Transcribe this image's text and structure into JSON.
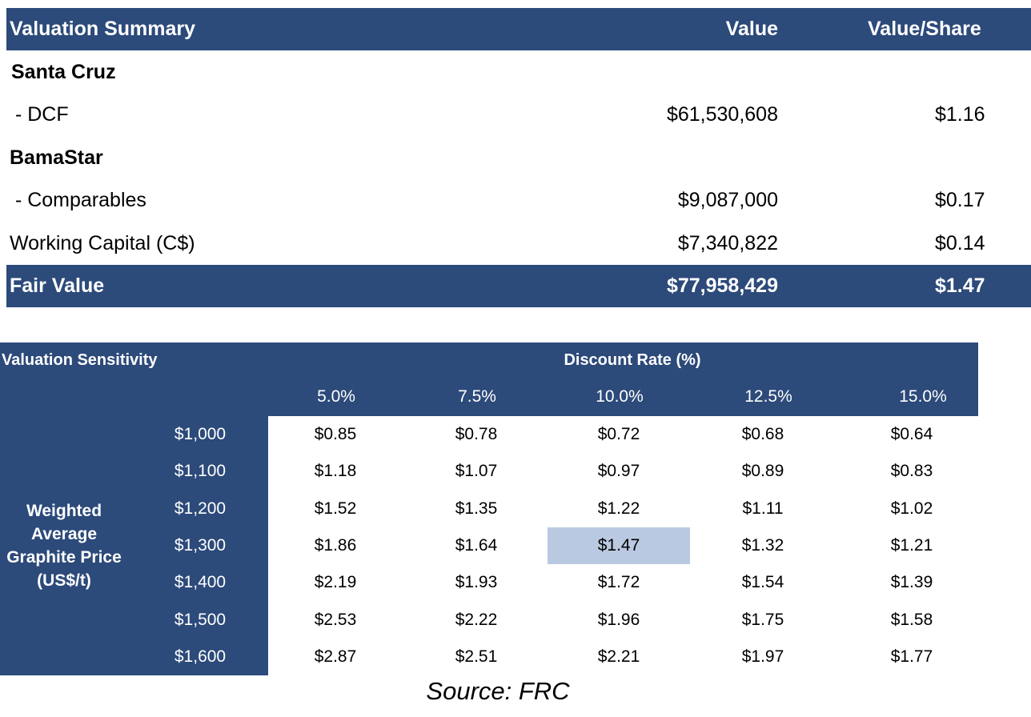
{
  "summary": {
    "header": {
      "title": "Valuation Summary",
      "value": "Value",
      "value_per_share": "Value/Share"
    },
    "rows": [
      {
        "label": "Santa Cruz",
        "value": "",
        "value_per_share": ""
      },
      {
        "label": " - DCF",
        "value": "$61,530,608",
        "value_per_share": "$1.16"
      },
      {
        "label": "BamaStar",
        "value": "",
        "value_per_share": ""
      },
      {
        "label": " - Comparables",
        "value": "$9,087,000",
        "value_per_share": "$0.17"
      },
      {
        "label": "Working Capital (C$)",
        "value": "$7,340,822",
        "value_per_share": "$0.14"
      }
    ],
    "total": {
      "label": "Fair Value",
      "value": "$77,958,429",
      "value_per_share": "$1.47"
    }
  },
  "sensitivity": {
    "title": "Valuation Sensitivity",
    "column_axis_label": "Discount Rate (%)",
    "row_axis_label": "Weighted Average Graphite Price (US$/t)",
    "row_axis_lines": [
      "Weighted",
      "Average",
      "Graphite Price",
      "(US$/t)"
    ],
    "discount_rates": [
      "5.0%",
      "7.5%",
      "10.0%",
      "12.5%",
      "15.0%"
    ],
    "prices": [
      "$1,000",
      "$1,100",
      "$1,200",
      "$1,300",
      "$1,400",
      "$1,500",
      "$1,600"
    ],
    "values": [
      [
        "$0.85",
        "$0.78",
        "$0.72",
        "$0.68",
        "$0.64"
      ],
      [
        "$1.18",
        "$1.07",
        "$0.97",
        "$0.89",
        "$0.83"
      ],
      [
        "$1.52",
        "$1.35",
        "$1.22",
        "$1.11",
        "$1.02"
      ],
      [
        "$1.86",
        "$1.64",
        "$1.47",
        "$1.32",
        "$1.21"
      ],
      [
        "$2.19",
        "$1.93",
        "$1.72",
        "$1.54",
        "$1.39"
      ],
      [
        "$2.53",
        "$2.22",
        "$1.96",
        "$1.75",
        "$1.58"
      ],
      [
        "$2.87",
        "$2.51",
        "$2.21",
        "$1.97",
        "$1.77"
      ]
    ],
    "highlight": {
      "price": "$1,300",
      "discount_rate": "10.0%"
    }
  },
  "source": "Source: FRC",
  "colors": {
    "header_navy": "#2c4a7a",
    "highlight": "#b9c9e1",
    "header_text": "#ffffff"
  }
}
